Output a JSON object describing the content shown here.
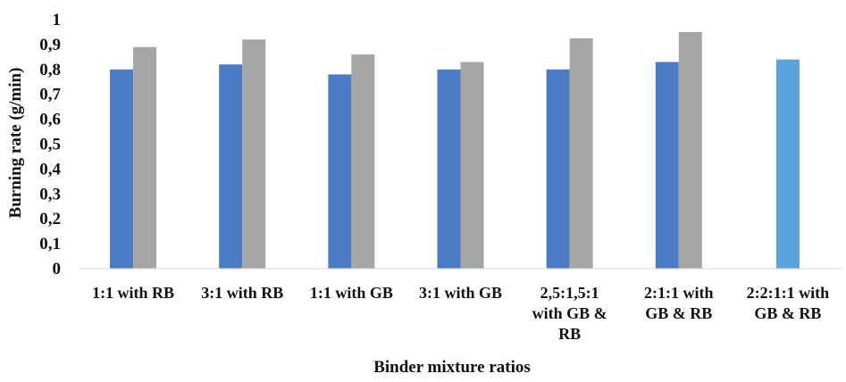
{
  "chart_data": {
    "type": "bar",
    "title": "",
    "xlabel": "Binder mixture ratios",
    "ylabel": "Burning rate (g/min)",
    "ylim": [
      0,
      1
    ],
    "yticks": [
      "0",
      "0,1",
      "0,2",
      "0,3",
      "0,4",
      "0,5",
      "0,6",
      "0,7",
      "0,8",
      "0,9",
      "1"
    ],
    "grid": false,
    "legend": "none",
    "categories": [
      [
        "1:1 with RB"
      ],
      [
        "3:1 with RB"
      ],
      [
        "1:1 with GB"
      ],
      [
        "3:1 with GB"
      ],
      [
        "2,5:1,5:1",
        "with GB &",
        "RB"
      ],
      [
        "2:1:1 with",
        "GB & RB"
      ],
      [
        "2:2:1:1 with",
        "GB & RB"
      ]
    ],
    "series": [
      {
        "color": "#4a7bc4",
        "values": [
          0.8,
          0.82,
          0.78,
          0.8,
          0.8,
          0.83,
          null
        ]
      },
      {
        "color": "#a6a6a6",
        "values": [
          0.89,
          0.92,
          0.86,
          0.83,
          0.925,
          0.95,
          null
        ]
      },
      {
        "color": "#5ba3dc",
        "values": [
          null,
          null,
          null,
          null,
          null,
          null,
          0.84
        ]
      }
    ]
  }
}
